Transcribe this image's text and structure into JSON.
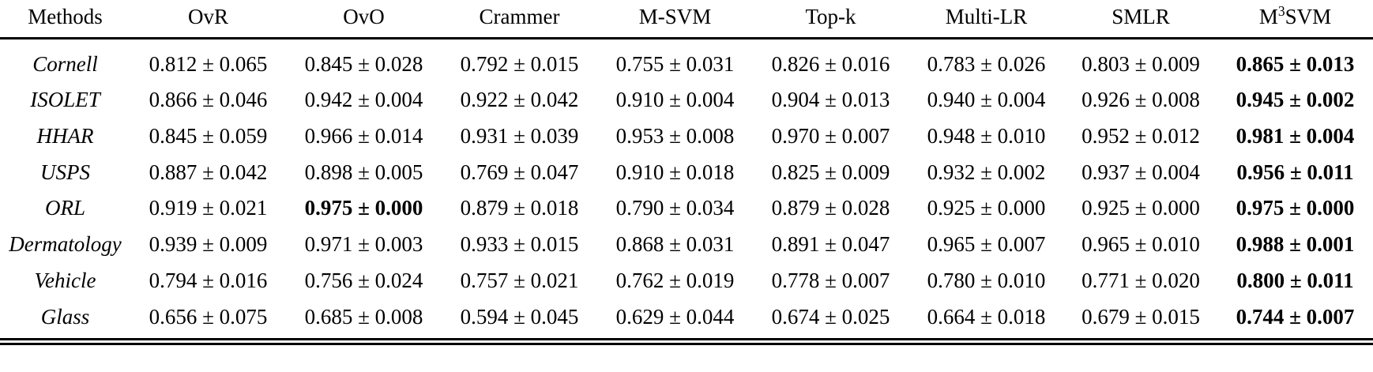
{
  "table": {
    "columns": [
      "Methods",
      "OvR",
      "OvO",
      "Crammer",
      "M-SVM",
      "Top-k",
      "Multi-LR",
      "SMLR",
      "M³SVM"
    ],
    "plus_minus_symbol": "±",
    "rows": [
      {
        "method": "Cornell",
        "cells": [
          "0.812 ± 0.065",
          "0.845 ± 0.028",
          "0.792 ± 0.015",
          "0.755 ± 0.031",
          "0.826 ± 0.016",
          "0.783 ± 0.026",
          "0.803 ± 0.009",
          "0.865 ± 0.013"
        ],
        "bold": [
          7
        ]
      },
      {
        "method": "ISOLET",
        "cells": [
          "0.866 ± 0.046",
          "0.942 ± 0.004",
          "0.922 ± 0.042",
          "0.910 ± 0.004",
          "0.904 ± 0.013",
          "0.940 ± 0.004",
          "0.926 ± 0.008",
          "0.945 ± 0.002"
        ],
        "bold": [
          7
        ]
      },
      {
        "method": "HHAR",
        "cells": [
          "0.845 ± 0.059",
          "0.966 ± 0.014",
          "0.931 ± 0.039",
          "0.953 ± 0.008",
          "0.970 ± 0.007",
          "0.948 ± 0.010",
          "0.952 ± 0.012",
          "0.981 ± 0.004"
        ],
        "bold": [
          7
        ]
      },
      {
        "method": "USPS",
        "cells": [
          "0.887 ± 0.042",
          "0.898 ± 0.005",
          "0.769 ± 0.047",
          "0.910 ± 0.018",
          "0.825 ± 0.009",
          "0.932 ± 0.002",
          "0.937 ± 0.004",
          "0.956 ± 0.011"
        ],
        "bold": [
          7
        ]
      },
      {
        "method": "ORL",
        "cells": [
          "0.919 ± 0.021",
          "0.975 ± 0.000",
          "0.879 ± 0.018",
          "0.790 ± 0.034",
          "0.879 ± 0.028",
          "0.925 ± 0.000",
          "0.925 ± 0.000",
          "0.975 ± 0.000"
        ],
        "bold": [
          1,
          7
        ]
      },
      {
        "method": "Dermatology",
        "cells": [
          "0.939 ± 0.009",
          "0.971 ± 0.003",
          "0.933 ± 0.015",
          "0.868 ± 0.031",
          "0.891 ± 0.047",
          "0.965 ± 0.007",
          "0.965 ± 0.010",
          "0.988 ± 0.001"
        ],
        "bold": [
          7
        ]
      },
      {
        "method": "Vehicle",
        "cells": [
          "0.794 ± 0.016",
          "0.756 ± 0.024",
          "0.757 ± 0.021",
          "0.762 ± 0.019",
          "0.778 ± 0.007",
          "0.780 ± 0.010",
          "0.771 ± 0.020",
          "0.800 ± 0.011"
        ],
        "bold": [
          7
        ]
      },
      {
        "method": "Glass",
        "cells": [
          "0.656 ± 0.075",
          "0.685 ± 0.008",
          "0.594 ± 0.045",
          "0.629 ± 0.044",
          "0.674 ± 0.025",
          "0.664 ± 0.018",
          "0.679 ± 0.015",
          "0.744 ± 0.007"
        ],
        "bold": [
          7
        ]
      }
    ]
  }
}
